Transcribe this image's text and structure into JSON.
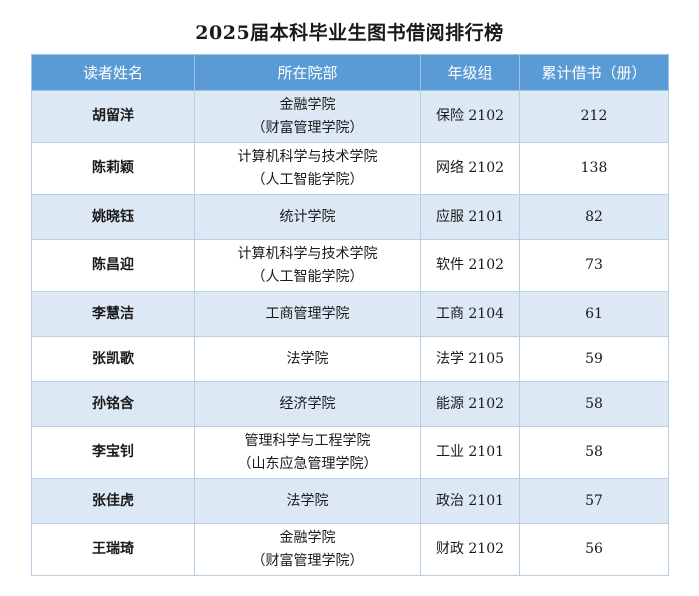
{
  "title": "2025届本科毕业生图书借阅排行榜",
  "headers": {
    "reader": "读者姓名",
    "college": "所在院部",
    "grade": "年级组",
    "count": "累计借书（册）"
  },
  "rows": [
    {
      "name": "胡留洋",
      "college": [
        "金融学院",
        "（财富管理学院）"
      ],
      "grade": "保险 2102",
      "count": "212"
    },
    {
      "name": "陈莉颖",
      "college": [
        "计算机科学与技术学院",
        "（人工智能学院）"
      ],
      "grade": "网络 2102",
      "count": "138"
    },
    {
      "name": "姚晓钰",
      "college": [
        "统计学院"
      ],
      "grade": "应服 2101",
      "count": "82"
    },
    {
      "name": "陈昌迎",
      "college": [
        "计算机科学与技术学院",
        "（人工智能学院）"
      ],
      "grade": "软件 2102",
      "count": "73"
    },
    {
      "name": "李慧洁",
      "college": [
        "工商管理学院"
      ],
      "grade": "工商 2104",
      "count": "61"
    },
    {
      "name": "张凯歌",
      "college": [
        "法学院"
      ],
      "grade": "法学 2105",
      "count": "59"
    },
    {
      "name": "孙铭含",
      "college": [
        "经济学院"
      ],
      "grade": "能源 2102",
      "count": "58"
    },
    {
      "name": "李宝钊",
      "college": [
        "管理科学与工程学院",
        "（山东应急管理学院）"
      ],
      "grade": "工业 2101",
      "count": "58"
    },
    {
      "name": "张佳虎",
      "college": [
        "法学院"
      ],
      "grade": "政治 2101",
      "count": "57"
    },
    {
      "name": "王瑞琦",
      "college": [
        "金融学院",
        "（财富管理学院）"
      ],
      "grade": "财政 2102",
      "count": "56"
    }
  ]
}
